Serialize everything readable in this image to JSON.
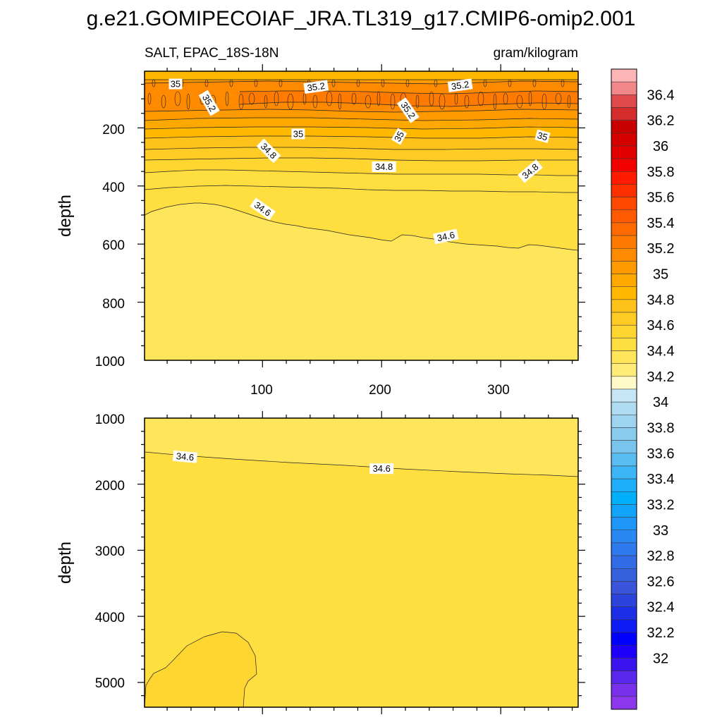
{
  "title": "g.e21.GOMIPECOIAF_JRA.TL319_g17.CMIP6-omip2.001",
  "chart_data": [
    {
      "type": "contour",
      "panel": "upper",
      "left_string": "SALT, EPAC_18S-18N",
      "right_string": "gram/kilogram",
      "xlabel": "",
      "ylabel": "depth",
      "xlim": [
        1,
        365
      ],
      "ylim": [
        1000,
        5
      ],
      "y_reversed": true,
      "xticks": [
        "100",
        "200",
        "300"
      ],
      "yticks": [
        "200",
        "400",
        "600",
        "800",
        "1000"
      ],
      "contour_interval": 0.05,
      "contour_labels": [
        {
          "text": "35",
          "x": 27,
          "depth": 50,
          "rot": 0
        },
        {
          "text": "35.2",
          "x": 55,
          "depth": 115,
          "rot": 60
        },
        {
          "text": "35.2",
          "x": 145,
          "depth": 60,
          "rot": -8
        },
        {
          "text": "35.2",
          "x": 222,
          "depth": 140,
          "rot": 55
        },
        {
          "text": "35.2",
          "x": 266,
          "depth": 55,
          "rot": -8
        },
        {
          "text": "35",
          "x": 130,
          "depth": 222,
          "rot": 0
        },
        {
          "text": "35",
          "x": 215,
          "depth": 230,
          "rot": -60
        },
        {
          "text": "35",
          "x": 335,
          "depth": 230,
          "rot": 15
        },
        {
          "text": "34.8",
          "x": 105,
          "depth": 280,
          "rot": 45
        },
        {
          "text": "34.8",
          "x": 202,
          "depth": 335,
          "rot": 0
        },
        {
          "text": "34.8",
          "x": 325,
          "depth": 350,
          "rot": -40
        },
        {
          "text": "34.6",
          "x": 100,
          "depth": 480,
          "rot": 35
        },
        {
          "text": "34.6",
          "x": 254,
          "depth": 575,
          "rot": -12
        }
      ]
    },
    {
      "type": "contour",
      "panel": "lower",
      "xlabel": "",
      "ylabel": "depth",
      "xlim": [
        1,
        365
      ],
      "ylim": [
        5375,
        1000
      ],
      "y_reversed": true,
      "yticks": [
        "1000",
        "2000",
        "3000",
        "4000",
        "5000"
      ],
      "contour_labels": [
        {
          "text": "34.6",
          "x": 35,
          "depth": 1590,
          "rot": 5
        },
        {
          "text": "34.6",
          "x": 200,
          "depth": 1770,
          "rot": 0
        }
      ]
    }
  ],
  "colorbar": {
    "labels": [
      "36.4",
      "36.2",
      "36",
      "35.8",
      "35.6",
      "35.4",
      "35.2",
      "35",
      "34.8",
      "34.6",
      "34.4",
      "34.2",
      "34",
      "33.8",
      "33.6",
      "33.4",
      "33.2",
      "33",
      "32.8",
      "32.6",
      "32.4",
      "32.2",
      "32"
    ],
    "colors": [
      "#FDB6B8",
      "#F2888A",
      "#E04A4A",
      "#D42C2C",
      "#C80000",
      "#D40000",
      "#E00000",
      "#F20000",
      "#FF1A00",
      "#FF3000",
      "#FF4800",
      "#FF5A00",
      "#FF6A00",
      "#FF7A00",
      "#FF8A00",
      "#FF9A00",
      "#FFA800",
      "#FFB800",
      "#FFC21A",
      "#FFCB25",
      "#FFD530",
      "#FFDE40",
      "#FFE55A",
      "#FFEB78",
      "#FFFAC8",
      "#C6E6F6",
      "#B0DCF2",
      "#9DD4F0",
      "#8ACCEE",
      "#78C4EC",
      "#5ABDF2",
      "#3CB5F6",
      "#1EAEFA",
      "#00AFFA",
      "#12A4FA",
      "#1E96FA",
      "#2A88F5",
      "#2F79EE",
      "#326BE6",
      "#3560DE",
      "#3A55DC",
      "#2C43DC",
      "#1C2FE6",
      "#0C1CF2",
      "#0000FF",
      "#1E00FA",
      "#3C14F0",
      "#5A28EC",
      "#7830EB",
      "#8C37EB"
    ]
  }
}
